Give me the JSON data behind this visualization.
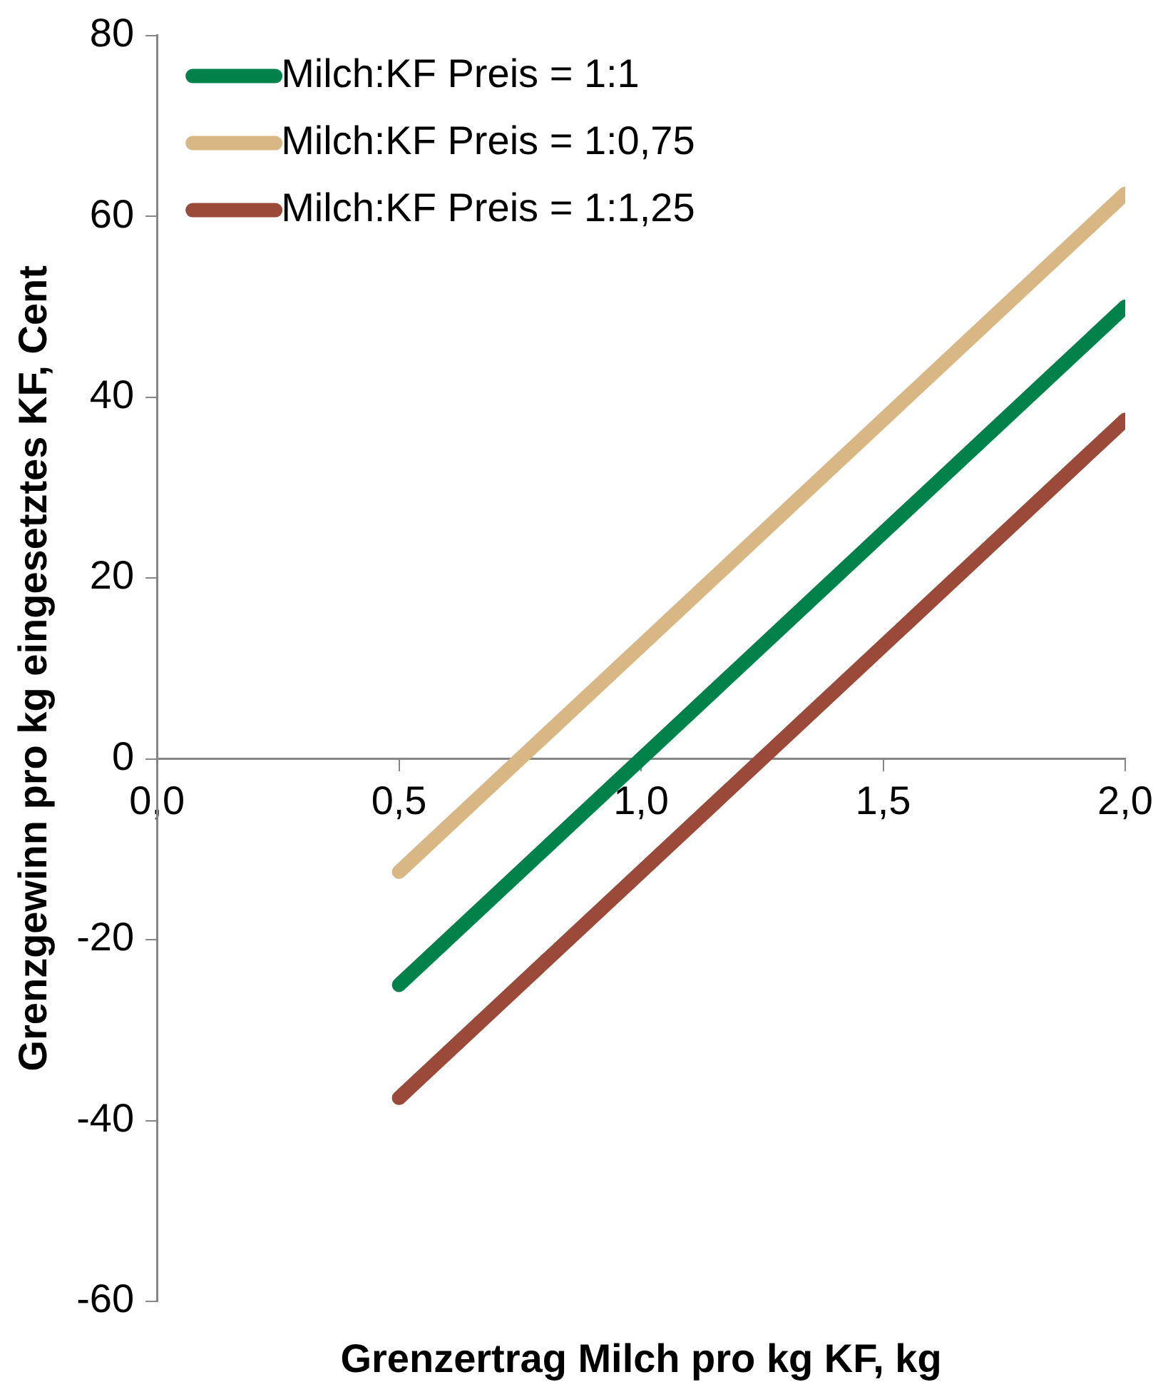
{
  "chart_data": {
    "type": "line",
    "xlabel": "Grenzertrag Milch pro kg KF, kg",
    "ylabel": "Grenzgewinn pro kg eingesetztes KF, Cent",
    "x": [
      0.5,
      2.0
    ],
    "series": [
      {
        "name": "Milch:KF Preis = 1:1",
        "color": "#00824a",
        "values": [
          -25,
          50
        ]
      },
      {
        "name": "Milch:KF Preis = 1:0,75",
        "color": "#d9b784",
        "values": [
          -12.5,
          62.5
        ]
      },
      {
        "name": "Milch:KF Preis = 1:1,25",
        "color": "#9b4a3a",
        "values": [
          -37.5,
          37.5
        ]
      }
    ],
    "xlim": [
      0,
      2
    ],
    "xticks": [
      {
        "value": 0,
        "label": "0,0"
      },
      {
        "value": 0.5,
        "label": "0,5"
      },
      {
        "value": 1,
        "label": "1,0"
      },
      {
        "value": 1.5,
        "label": "1,5"
      },
      {
        "value": 2,
        "label": "2,0"
      }
    ],
    "ylim": [
      -60,
      80
    ],
    "yticks": [
      -60,
      -40,
      -20,
      0,
      20,
      40,
      60,
      80
    ],
    "grid": false,
    "legend": "top left",
    "marker": "none",
    "line_style": "solid"
  }
}
